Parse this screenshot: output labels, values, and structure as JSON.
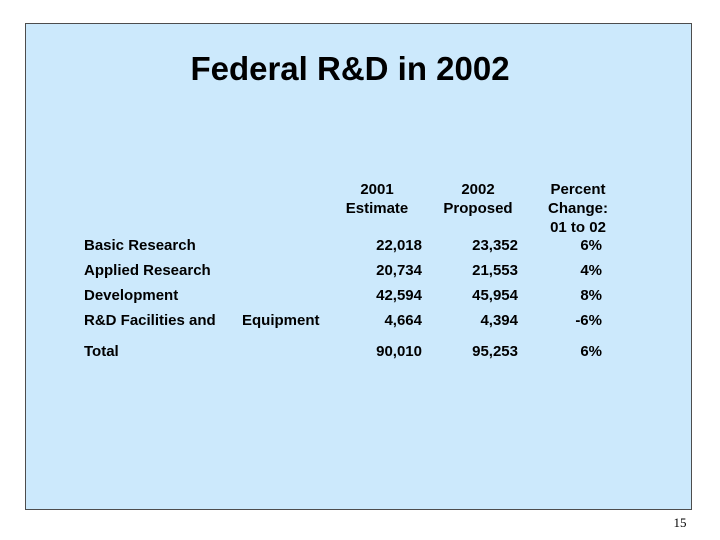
{
  "slide": {
    "title": "Federal R&D in 2002",
    "page_number": "15"
  },
  "table": {
    "columns": [
      {
        "line1": "2001",
        "line2": "Estimate",
        "line3": ""
      },
      {
        "line1": "2002",
        "line2": "Proposed",
        "line3": ""
      },
      {
        "line1": "Percent",
        "line2": "Change:",
        "line3": "01 to 02"
      }
    ],
    "rows": [
      {
        "label": "Basic Research",
        "label2": "",
        "v2001": "22,018",
        "v2002": "23,352",
        "pct": "6%"
      },
      {
        "label": "Applied Research",
        "label2": "",
        "v2001": "20,734",
        "v2002": "21,553",
        "pct": "4%"
      },
      {
        "label": "Development",
        "label2": "",
        "v2001": "42,594",
        "v2002": "45,954",
        "pct": "8%"
      },
      {
        "label": "R&D Facilities and",
        "label2": "Equipment",
        "v2001": "4,664",
        "v2002": "4,394",
        "pct": "-6%"
      }
    ],
    "total": {
      "label": "Total",
      "v2001": "90,010",
      "v2002": "95,253",
      "pct": "6%"
    }
  }
}
